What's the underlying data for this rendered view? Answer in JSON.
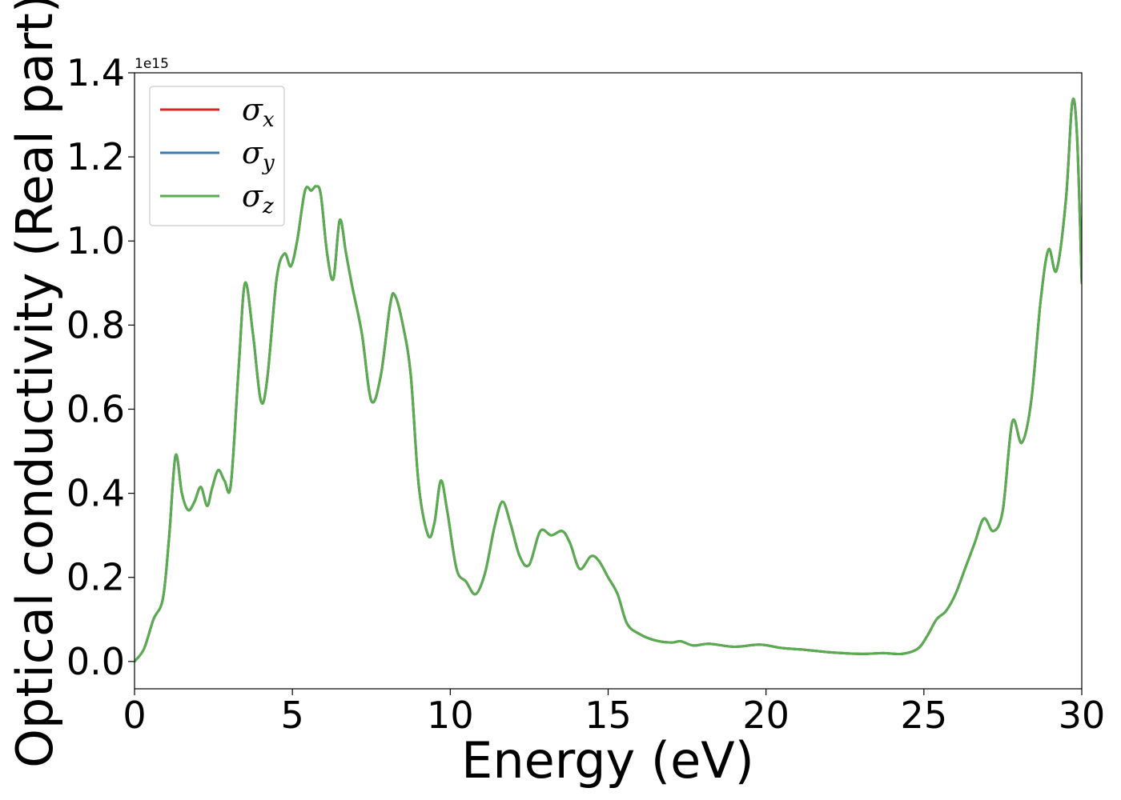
{
  "chart_data": {
    "type": "line",
    "xlabel": "Energy (eV)",
    "ylabel": "Optical conductivity (Real part)",
    "y_offset_label": "1e15",
    "xlim": [
      0,
      30
    ],
    "ylim": [
      -0.065,
      1.4
    ],
    "x_ticks": [
      0,
      5,
      10,
      15,
      20,
      25,
      30
    ],
    "x_tick_labels": [
      "0",
      "5",
      "10",
      "15",
      "20",
      "25",
      "30"
    ],
    "y_ticks": [
      0.0,
      0.2,
      0.4,
      0.6,
      0.8,
      1.0,
      1.2,
      1.4
    ],
    "y_tick_labels": [
      "0.0",
      "0.2",
      "0.4",
      "0.6",
      "0.8",
      "1.0",
      "1.2",
      "1.4"
    ],
    "grid": false,
    "legend_position": "top-left",
    "x": [
      0,
      0.3,
      0.6,
      0.9,
      1.1,
      1.3,
      1.5,
      1.7,
      1.9,
      2.1,
      2.3,
      2.45,
      2.65,
      2.85,
      3.05,
      3.3,
      3.5,
      3.75,
      4.0,
      4.2,
      4.5,
      4.75,
      4.95,
      5.15,
      5.4,
      5.6,
      5.75,
      5.9,
      6.1,
      6.3,
      6.5,
      6.7,
      6.9,
      7.2,
      7.5,
      7.8,
      8.1,
      8.25,
      8.5,
      8.75,
      9.0,
      9.3,
      9.5,
      9.7,
      9.9,
      10.2,
      10.5,
      10.8,
      11.1,
      11.4,
      11.65,
      11.9,
      12.2,
      12.5,
      12.85,
      13.2,
      13.55,
      13.8,
      14.1,
      14.45,
      14.7,
      15.0,
      15.3,
      15.6,
      16.0,
      16.5,
      17.0,
      17.3,
      17.7,
      18.2,
      19.0,
      19.8,
      20.5,
      21.2,
      22.0,
      23.0,
      23.7,
      24.3,
      24.8,
      25.1,
      25.4,
      25.7,
      26.0,
      26.3,
      26.6,
      26.9,
      27.2,
      27.5,
      27.8,
      28.1,
      28.4,
      28.7,
      28.95,
      29.2,
      29.5,
      29.7,
      29.85,
      30.0
    ],
    "series": [
      {
        "name": "σ_x",
        "name_base": "σ",
        "name_sub": "x",
        "color": "#d62728",
        "values": [
          0.0,
          0.03,
          0.1,
          0.15,
          0.3,
          0.49,
          0.4,
          0.36,
          0.38,
          0.415,
          0.37,
          0.41,
          0.455,
          0.43,
          0.42,
          0.7,
          0.9,
          0.78,
          0.62,
          0.67,
          0.91,
          0.97,
          0.94,
          1.0,
          1.12,
          1.12,
          1.13,
          1.11,
          0.97,
          0.91,
          1.05,
          0.97,
          0.89,
          0.78,
          0.62,
          0.68,
          0.85,
          0.87,
          0.8,
          0.68,
          0.42,
          0.3,
          0.33,
          0.43,
          0.36,
          0.22,
          0.19,
          0.16,
          0.21,
          0.32,
          0.38,
          0.33,
          0.25,
          0.23,
          0.31,
          0.3,
          0.31,
          0.28,
          0.22,
          0.25,
          0.24,
          0.2,
          0.16,
          0.09,
          0.065,
          0.05,
          0.045,
          0.048,
          0.038,
          0.042,
          0.035,
          0.04,
          0.032,
          0.028,
          0.022,
          0.018,
          0.02,
          0.018,
          0.03,
          0.06,
          0.1,
          0.12,
          0.16,
          0.22,
          0.28,
          0.34,
          0.31,
          0.36,
          0.57,
          0.52,
          0.62,
          0.86,
          0.98,
          0.93,
          1.1,
          1.33,
          1.25,
          0.9
        ]
      },
      {
        "name": "σ_y",
        "name_base": "σ",
        "name_sub": "y",
        "color": "#3b7eb5",
        "values": [
          0.0,
          0.03,
          0.1,
          0.15,
          0.3,
          0.49,
          0.4,
          0.36,
          0.38,
          0.415,
          0.37,
          0.41,
          0.455,
          0.43,
          0.42,
          0.7,
          0.9,
          0.78,
          0.62,
          0.67,
          0.91,
          0.97,
          0.94,
          1.0,
          1.12,
          1.12,
          1.13,
          1.11,
          0.97,
          0.91,
          1.05,
          0.97,
          0.89,
          0.78,
          0.62,
          0.68,
          0.85,
          0.87,
          0.8,
          0.68,
          0.42,
          0.3,
          0.33,
          0.43,
          0.36,
          0.22,
          0.19,
          0.16,
          0.21,
          0.32,
          0.38,
          0.33,
          0.25,
          0.23,
          0.31,
          0.3,
          0.31,
          0.28,
          0.22,
          0.25,
          0.24,
          0.2,
          0.16,
          0.09,
          0.065,
          0.05,
          0.045,
          0.048,
          0.038,
          0.042,
          0.035,
          0.04,
          0.032,
          0.028,
          0.022,
          0.018,
          0.02,
          0.018,
          0.03,
          0.06,
          0.1,
          0.12,
          0.16,
          0.22,
          0.28,
          0.34,
          0.31,
          0.36,
          0.57,
          0.52,
          0.62,
          0.86,
          0.98,
          0.93,
          1.1,
          1.33,
          1.25,
          0.9
        ]
      },
      {
        "name": "σ_z",
        "name_base": "σ",
        "name_sub": "z",
        "color": "#5aad4e",
        "values": [
          0.0,
          0.03,
          0.1,
          0.15,
          0.3,
          0.49,
          0.4,
          0.36,
          0.38,
          0.415,
          0.37,
          0.41,
          0.455,
          0.43,
          0.42,
          0.7,
          0.9,
          0.78,
          0.62,
          0.67,
          0.91,
          0.97,
          0.94,
          1.0,
          1.12,
          1.12,
          1.13,
          1.11,
          0.97,
          0.91,
          1.05,
          0.97,
          0.89,
          0.78,
          0.62,
          0.68,
          0.85,
          0.87,
          0.8,
          0.68,
          0.42,
          0.3,
          0.33,
          0.43,
          0.36,
          0.22,
          0.19,
          0.16,
          0.21,
          0.32,
          0.38,
          0.33,
          0.25,
          0.23,
          0.31,
          0.3,
          0.31,
          0.28,
          0.22,
          0.25,
          0.24,
          0.2,
          0.16,
          0.09,
          0.065,
          0.05,
          0.045,
          0.048,
          0.038,
          0.042,
          0.035,
          0.04,
          0.032,
          0.028,
          0.022,
          0.018,
          0.02,
          0.018,
          0.03,
          0.06,
          0.1,
          0.12,
          0.16,
          0.22,
          0.28,
          0.34,
          0.31,
          0.36,
          0.57,
          0.52,
          0.62,
          0.86,
          0.98,
          0.93,
          1.1,
          1.33,
          1.25,
          0.9
        ]
      }
    ]
  }
}
